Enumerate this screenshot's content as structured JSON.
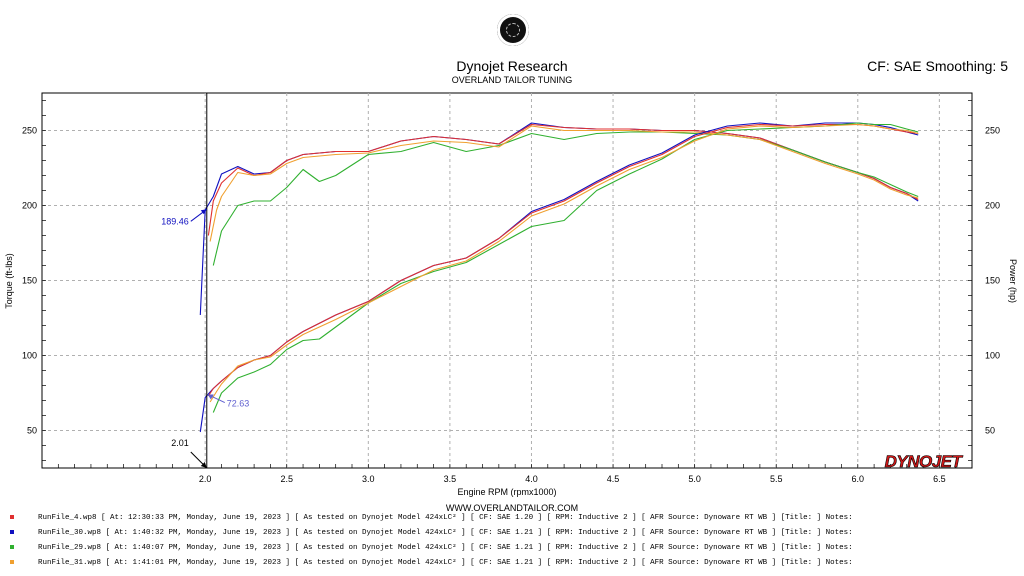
{
  "header": {
    "title": "Dynojet Research",
    "subtitle": "OVERLAND TAILOR TUNING",
    "cf_info": "CF: SAE Smoothing: 5"
  },
  "footer": {
    "website": "WWW.OVERLANDTAILOR.COM",
    "brand": "DYNOJET"
  },
  "legend": [
    {
      "color": "#e03030",
      "text": "RunFile_4.wp8  [ At: 12:30:33 PM, Monday, June 19, 2023 ] [ As tested on Dynojet Model 424xLC² ] [ CF: SAE 1.20 ] [ RPM: Inductive 2 ] [ AFR Source: Dynoware RT WB ] [Title: ]  Notes:"
    },
    {
      "color": "#1010c0",
      "text": "RunFile_30.wp8  [ At: 1:40:32 PM, Monday, June 19, 2023 ] [ As tested on Dynojet Model 424xLC² ] [ CF: SAE 1.21 ] [ RPM: Inductive 2 ] [ AFR Source: Dynoware RT WB ] [Title: ]  Notes:"
    },
    {
      "color": "#30b030",
      "text": "RunFile_29.wp8  [ At: 1:40:07 PM, Monday, June 19, 2023 ] [ As tested on Dynojet Model 424xLC² ] [ CF: SAE 1.21 ] [ RPM: Inductive 2 ] [ AFR Source: Dynoware RT WB ] [Title: ]  Notes:"
    },
    {
      "color": "#f0a030",
      "text": "RunFile_31.wp8  [ At: 1:41:01 PM, Monday, June 19, 2023 ] [ As tested on Dynojet Model 424xLC² ] [ CF: SAE 1.21 ] [ RPM: Inductive 2 ] [ AFR Source: Dynoware RT WB ] [Title: ]  Notes:"
    }
  ],
  "chart_data": {
    "type": "line",
    "xlabel": "Engine RPM (rpmx1000)",
    "ylabel": "Torque (ft-lbs)",
    "y2label": "Power (hp)",
    "xlim": [
      1.0,
      6.7
    ],
    "ylim": [
      25,
      275
    ],
    "xticks": [
      "2.0",
      "2.5",
      "3.0",
      "3.5",
      "4.0",
      "4.5",
      "5.0",
      "5.5",
      "6.0",
      "6.5"
    ],
    "yticks": [
      "50",
      "100",
      "150",
      "200",
      "250"
    ],
    "grid": true,
    "cursor": {
      "x_label": "2.01",
      "torque_label": "189.46",
      "power_label": "72.63"
    },
    "series": [
      {
        "name": "RunFile_30.wp8 Torque",
        "color": "#1010c0",
        "x": [
          1.97,
          2.0,
          2.05,
          2.1,
          2.2,
          2.3,
          2.4,
          2.5,
          2.6,
          2.8,
          3.0,
          3.2,
          3.4,
          3.6,
          3.8,
          4.0,
          4.2,
          4.4,
          4.6,
          4.8,
          5.0,
          5.2,
          5.4,
          5.6,
          5.8,
          6.0,
          6.1,
          6.2,
          6.3,
          6.37
        ],
        "y": [
          127,
          197,
          206,
          221,
          226,
          221,
          222,
          230,
          234,
          236,
          236,
          243,
          246,
          244,
          241,
          255,
          252,
          251,
          251,
          250,
          250,
          248,
          245,
          237,
          229,
          222,
          218,
          212,
          208,
          203
        ]
      },
      {
        "name": "RunFile_4.wp8 Torque",
        "color": "#e03030",
        "x": [
          2.02,
          2.05,
          2.1,
          2.2,
          2.3,
          2.4,
          2.5,
          2.6,
          2.8,
          3.0,
          3.2,
          3.4,
          3.6,
          3.8,
          4.0,
          4.2,
          4.4,
          4.6,
          4.8,
          5.0,
          5.2,
          5.4,
          5.6,
          5.8,
          6.0,
          6.1,
          6.2,
          6.3,
          6.37
        ],
        "y": [
          180,
          203,
          215,
          225,
          220,
          222,
          230,
          234,
          236,
          236,
          243,
          246,
          244,
          241,
          254,
          252,
          251,
          251,
          250,
          250,
          248,
          245,
          237,
          229,
          222,
          218,
          212,
          208,
          204
        ]
      },
      {
        "name": "RunFile_29.wp8 Torque",
        "color": "#30b030",
        "x": [
          2.05,
          2.1,
          2.2,
          2.3,
          2.4,
          2.5,
          2.6,
          2.7,
          2.8,
          3.0,
          3.2,
          3.4,
          3.6,
          3.8,
          4.0,
          4.2,
          4.4,
          4.6,
          4.8,
          5.0,
          5.2,
          5.4,
          5.6,
          5.8,
          6.0,
          6.1,
          6.2,
          6.3,
          6.37
        ],
        "y": [
          160,
          183,
          200,
          203,
          203,
          212,
          224,
          216,
          220,
          234,
          236,
          242,
          236,
          240,
          248,
          244,
          248,
          249,
          249,
          248,
          247,
          244,
          237,
          229,
          222,
          219,
          214,
          209,
          206
        ]
      },
      {
        "name": "RunFile_31.wp8 Torque",
        "color": "#f0a030",
        "x": [
          2.03,
          2.07,
          2.1,
          2.2,
          2.3,
          2.4,
          2.5,
          2.6,
          2.8,
          3.0,
          3.2,
          3.4,
          3.6,
          3.8,
          4.0,
          4.2,
          4.4,
          4.6,
          4.8,
          5.0,
          5.2,
          5.4,
          5.6,
          5.8,
          6.0,
          6.1,
          6.2,
          6.3,
          6.37
        ],
        "y": [
          176,
          197,
          206,
          222,
          220,
          221,
          228,
          232,
          234,
          235,
          240,
          243,
          242,
          239,
          253,
          250,
          250,
          250,
          249,
          249,
          247,
          244,
          236,
          228,
          221,
          217,
          211,
          207,
          205
        ]
      },
      {
        "name": "RunFile_30.wp8 Power",
        "color": "#1010c0",
        "x": [
          1.97,
          2.0,
          2.05,
          2.1,
          2.2,
          2.3,
          2.4,
          2.5,
          2.6,
          2.8,
          3.0,
          3.2,
          3.4,
          3.6,
          3.8,
          4.0,
          4.2,
          4.4,
          4.6,
          4.8,
          5.0,
          5.2,
          5.4,
          5.6,
          5.8,
          6.0,
          6.1,
          6.2,
          6.3,
          6.37
        ],
        "y": [
          49,
          72,
          78,
          83,
          92,
          97,
          100,
          109,
          116,
          127,
          136,
          150,
          160,
          165,
          178,
          196,
          204,
          216,
          227,
          235,
          247,
          253,
          255,
          253,
          255,
          255,
          254,
          252,
          249,
          247
        ]
      },
      {
        "name": "RunFile_4.wp8 Power",
        "color": "#e03030",
        "x": [
          2.02,
          2.05,
          2.1,
          2.2,
          2.3,
          2.4,
          2.5,
          2.6,
          2.8,
          3.0,
          3.2,
          3.4,
          3.6,
          3.8,
          4.0,
          4.2,
          4.4,
          4.6,
          4.8,
          5.0,
          5.2,
          5.4,
          5.6,
          5.8,
          6.0,
          6.1,
          6.2,
          6.3,
          6.37
        ],
        "y": [
          73,
          78,
          83,
          92,
          97,
          100,
          109,
          116,
          127,
          136,
          150,
          160,
          165,
          178,
          195,
          203,
          215,
          226,
          234,
          246,
          252,
          254,
          253,
          254,
          254,
          253,
          251,
          249,
          248
        ]
      },
      {
        "name": "RunFile_29.wp8 Power",
        "color": "#30b030",
        "x": [
          2.05,
          2.1,
          2.2,
          2.3,
          2.4,
          2.5,
          2.6,
          2.7,
          2.8,
          3.0,
          3.2,
          3.4,
          3.6,
          3.8,
          4.0,
          4.2,
          4.4,
          4.6,
          4.8,
          5.0,
          5.2,
          5.4,
          5.6,
          5.8,
          6.0,
          6.1,
          6.2,
          6.3,
          6.37
        ],
        "y": [
          62,
          75,
          85,
          89,
          94,
          104,
          110,
          111,
          119,
          135,
          148,
          156,
          162,
          174,
          186,
          190,
          210,
          221,
          231,
          244,
          250,
          251,
          252,
          253,
          255,
          254,
          254,
          251,
          249
        ]
      },
      {
        "name": "RunFile_31.wp8 Power",
        "color": "#f0a030",
        "x": [
          2.03,
          2.07,
          2.1,
          2.2,
          2.3,
          2.4,
          2.5,
          2.6,
          2.8,
          3.0,
          3.2,
          3.4,
          3.6,
          3.8,
          4.0,
          4.2,
          4.4,
          4.6,
          4.8,
          5.0,
          5.2,
          5.4,
          5.6,
          5.8,
          6.0,
          6.1,
          6.2,
          6.3,
          6.37
        ],
        "y": [
          69,
          76,
          81,
          93,
          97,
          99,
          107,
          114,
          124,
          135,
          146,
          157,
          163,
          176,
          193,
          201,
          213,
          224,
          232,
          243,
          251,
          253,
          252,
          253,
          254,
          253,
          251,
          250,
          248
        ]
      }
    ]
  }
}
